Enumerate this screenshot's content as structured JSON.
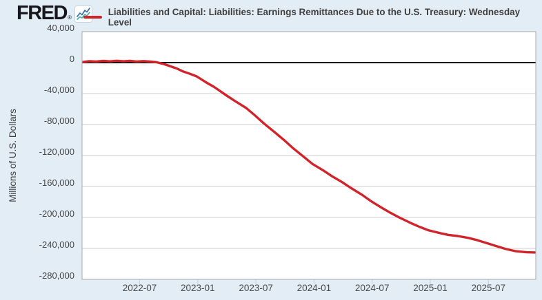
{
  "header": {
    "logo_text": "FRED",
    "registered_mark": "®"
  },
  "legend": {
    "series_label": "Liabilities and Capital: Liabilities: Earnings Remittances Due to the U.S. Treasury: Wednesday Level"
  },
  "colors": {
    "page_background": "#e3edf6",
    "plot_background": "#ffffff",
    "series_red": "#d0232a",
    "gridline": "#cccccc",
    "plot_border": "#a7a7a7",
    "zero_line": "#000000",
    "tick_mark": "#c3cede",
    "axis_text": "#454545",
    "logo_icon_blue": "#3a6fb0",
    "logo_icon_teal": "#45b0a2"
  },
  "chart_data": {
    "type": "line",
    "title": "Liabilities and Capital: Liabilities: Earnings Remittances Due to the U.S. Treasury: Wednesday Level",
    "xlabel": "",
    "ylabel": "Millions of U.S. Dollars",
    "ylim": [
      -280000,
      40000
    ],
    "xlim": [
      "2022-01-01",
      "2025-11-29"
    ],
    "grid": "horizontal-only",
    "legend_position": "top",
    "zero_line": true,
    "y_ticks": [
      {
        "value": 40000,
        "label": "40,000"
      },
      {
        "value": 0,
        "label": "0"
      },
      {
        "value": -40000,
        "label": "-40,000"
      },
      {
        "value": -80000,
        "label": "-80,000"
      },
      {
        "value": -120000,
        "label": "-120,000"
      },
      {
        "value": -160000,
        "label": "-160,000"
      },
      {
        "value": -200000,
        "label": "-200,000"
      },
      {
        "value": -240000,
        "label": "-240,000"
      },
      {
        "value": -280000,
        "label": "-280,000"
      }
    ],
    "x_ticks": [
      {
        "month": "2022-07",
        "label": "2022-07"
      },
      {
        "month": "2023-01",
        "label": "2023-01"
      },
      {
        "month": "2023-07",
        "label": "2023-07"
      },
      {
        "month": "2024-01",
        "label": "2024-01"
      },
      {
        "month": "2024-07",
        "label": "2024-07"
      },
      {
        "month": "2025-01",
        "label": "2025-01"
      },
      {
        "month": "2025-07",
        "label": "2025-07"
      }
    ],
    "series": [
      {
        "name": "Liabilities and Capital: Liabilities: Earnings Remittances Due to the U.S. Treasury: Wednesday Level",
        "units": "Millions of U.S. Dollars",
        "color": "#d0232a",
        "points": [
          [
            "2022-01-05",
            700
          ],
          [
            "2022-01-26",
            1900
          ],
          [
            "2022-02-16",
            1300
          ],
          [
            "2022-03-09",
            2200
          ],
          [
            "2022-03-30",
            1600
          ],
          [
            "2022-04-20",
            2400
          ],
          [
            "2022-05-11",
            1700
          ],
          [
            "2022-06-01",
            2300
          ],
          [
            "2022-06-22",
            1400
          ],
          [
            "2022-07-13",
            2000
          ],
          [
            "2022-08-03",
            1300
          ],
          [
            "2022-08-24",
            400
          ],
          [
            "2022-09-14",
            -1600
          ],
          [
            "2022-10-05",
            -4500
          ],
          [
            "2022-10-26",
            -7600
          ],
          [
            "2022-11-16",
            -11500
          ],
          [
            "2022-12-07",
            -14500
          ],
          [
            "2022-12-28",
            -17800
          ],
          [
            "2023-01-25",
            -25000
          ],
          [
            "2023-02-22",
            -31500
          ],
          [
            "2023-03-29",
            -42000
          ],
          [
            "2023-04-26",
            -49500
          ],
          [
            "2023-05-31",
            -58500
          ],
          [
            "2023-06-28",
            -68000
          ],
          [
            "2023-07-26",
            -78500
          ],
          [
            "2023-08-30",
            -90000
          ],
          [
            "2023-09-27",
            -99500
          ],
          [
            "2023-10-25",
            -110000
          ],
          [
            "2023-11-29",
            -121500
          ],
          [
            "2023-12-27",
            -131000
          ],
          [
            "2024-01-31",
            -139500
          ],
          [
            "2024-02-28",
            -147000
          ],
          [
            "2024-03-27",
            -154000
          ],
          [
            "2024-04-24",
            -161500
          ],
          [
            "2024-05-29",
            -170500
          ],
          [
            "2024-06-26",
            -178500
          ],
          [
            "2024-07-31",
            -187500
          ],
          [
            "2024-08-28",
            -194000
          ],
          [
            "2024-09-25",
            -200000
          ],
          [
            "2024-10-30",
            -207000
          ],
          [
            "2024-11-27",
            -212000
          ],
          [
            "2024-12-25",
            -216500
          ],
          [
            "2025-01-29",
            -220000
          ],
          [
            "2025-02-26",
            -222500
          ],
          [
            "2025-03-26",
            -224000
          ],
          [
            "2025-04-30",
            -226500
          ],
          [
            "2025-05-28",
            -229500
          ],
          [
            "2025-06-25",
            -233000
          ],
          [
            "2025-07-30",
            -237500
          ],
          [
            "2025-08-27",
            -241000
          ],
          [
            "2025-09-24",
            -243500
          ],
          [
            "2025-10-29",
            -245000
          ],
          [
            "2025-11-26",
            -245200
          ]
        ]
      }
    ]
  }
}
